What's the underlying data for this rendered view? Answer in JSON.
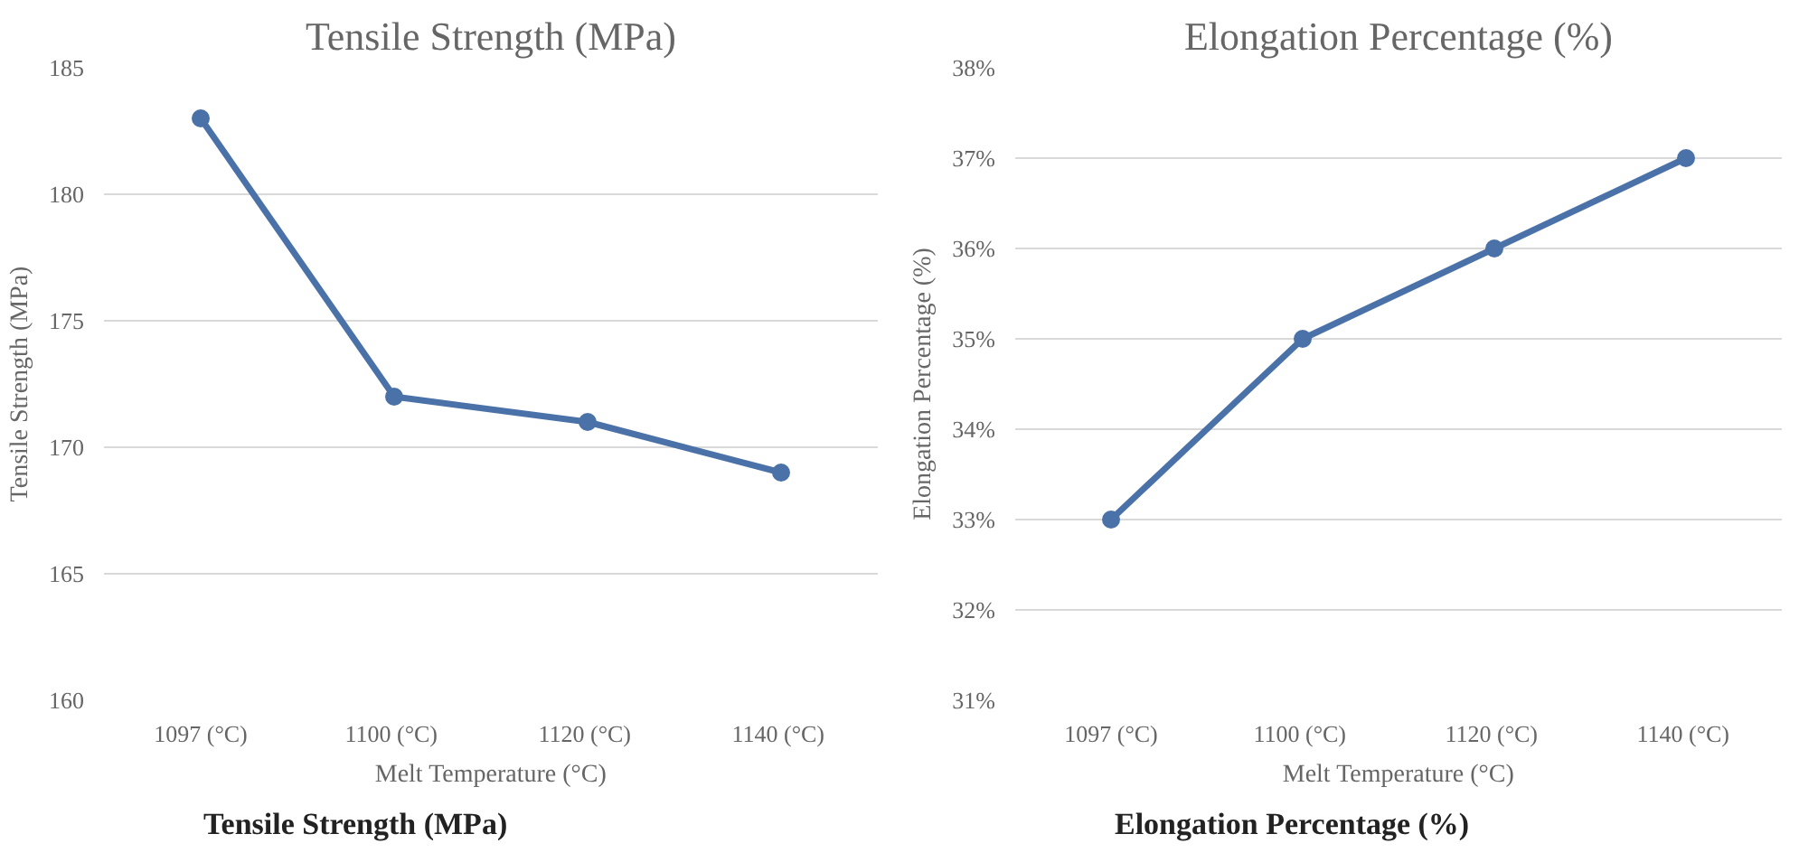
{
  "chart_data": [
    {
      "type": "line",
      "title": "Tensile Strength (MPa)",
      "xlabel": "Melt Temperature (°C)",
      "ylabel": "Tensile Strength (MPa)",
      "categories": [
        "1097 (°C)",
        "1100  (°C)",
        "1120  (°C)",
        "1140  (°C)"
      ],
      "series": [
        {
          "color": "#4a72a8",
          "values": [
            183,
            172,
            171,
            169
          ]
        }
      ],
      "ylim": [
        160,
        185
      ],
      "yticks": [
        160,
        165,
        170,
        175,
        180,
        185
      ],
      "grid": "y",
      "marker": "circle",
      "line_style": "solid",
      "annotations": [
        "Tensile Strength (MPa)"
      ]
    },
    {
      "type": "line",
      "title": "Elongation Percentage (%)",
      "xlabel": "Melt Temperature (°C)",
      "ylabel": "Elongation Percentage (%)",
      "categories": [
        "1097 (°C)",
        "1100  (°C)",
        "1120  (°C)",
        "1140  (°C)"
      ],
      "series": [
        {
          "color": "#4a72a8",
          "values": [
            33,
            35,
            36,
            37
          ]
        }
      ],
      "ylim": [
        31,
        38
      ],
      "yticks": [
        {
          "value": 31,
          "label": "31%"
        },
        {
          "value": 32,
          "label": "32%"
        },
        {
          "value": 33,
          "label": "33%"
        },
        {
          "value": 34,
          "label": "34%"
        },
        {
          "value": 35,
          "label": "35%"
        },
        {
          "value": 36,
          "label": "36%"
        },
        {
          "value": 37,
          "label": "37%"
        },
        {
          "value": 38,
          "label": "38%"
        }
      ],
      "grid": "y",
      "marker": "circle",
      "line_style": "solid",
      "annotations": [
        "Elongation Percentage (%)"
      ]
    }
  ]
}
